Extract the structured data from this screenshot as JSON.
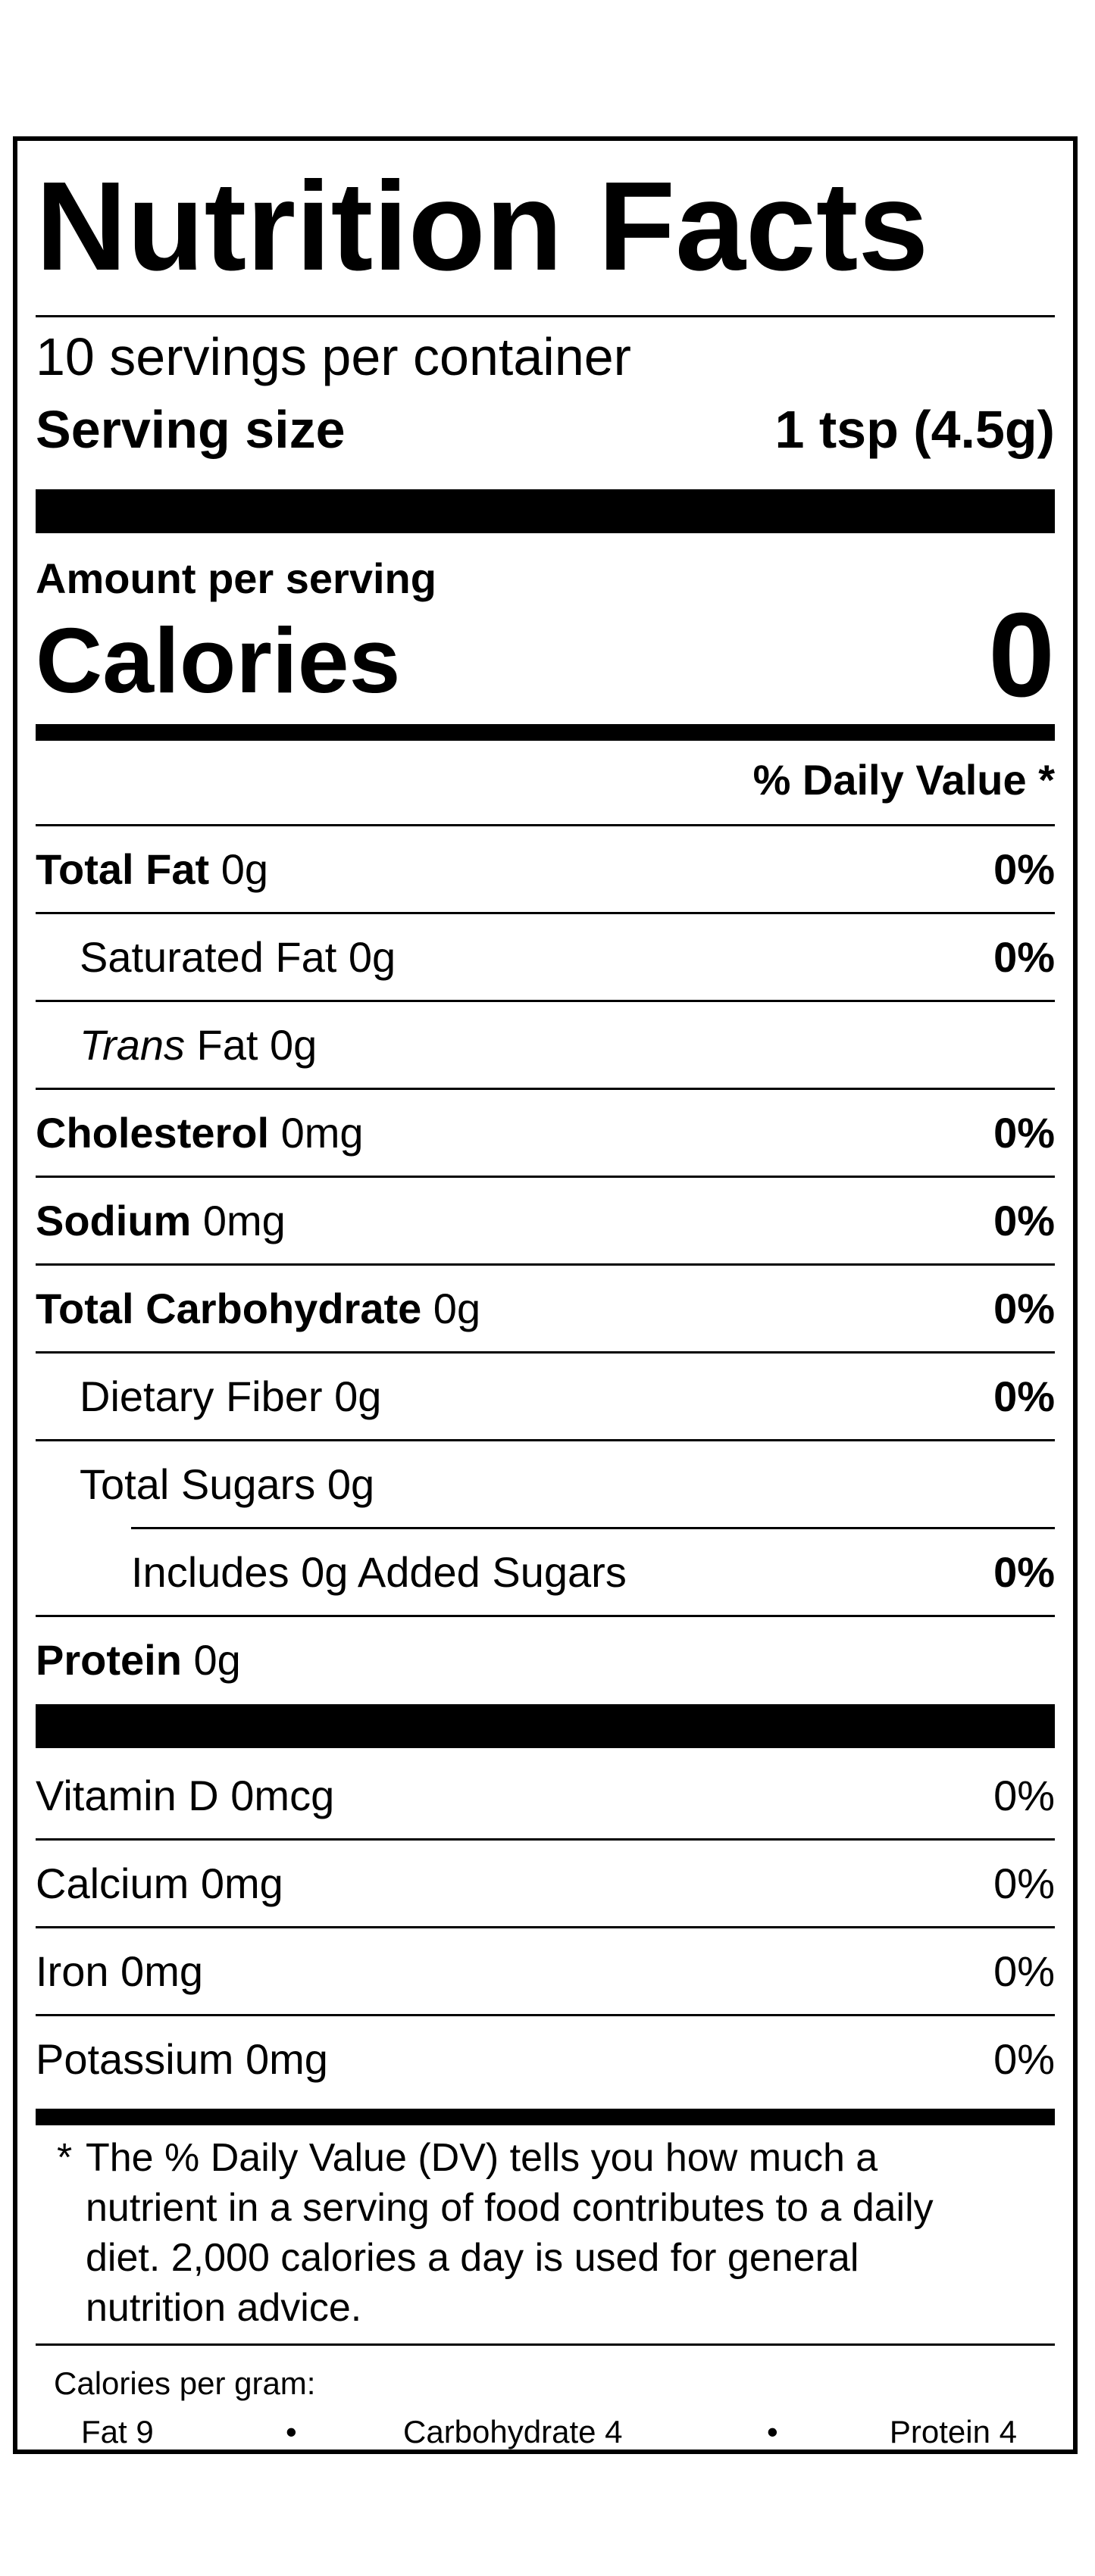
{
  "title": "Nutrition Facts",
  "servings_per_container": "10 servings per container",
  "serving_size": {
    "label": "Serving size",
    "value": "1 tsp (4.5g)"
  },
  "amount_per_serving": "Amount per serving",
  "calories": {
    "label": "Calories",
    "value": "0"
  },
  "daily_value_header": "% Daily Value *",
  "nutrients": [
    {
      "bold": "Total Fat",
      "amount": " 0g",
      "dv": "0%"
    },
    {
      "plain": "Saturated Fat 0g",
      "dv": "0%"
    },
    {
      "italic": "Trans",
      "amount": " Fat 0g",
      "dv": ""
    },
    {
      "bold": "Cholesterol",
      "amount": " 0mg",
      "dv": "0%"
    },
    {
      "bold": "Sodium",
      "amount": " 0mg",
      "dv": "0%"
    },
    {
      "bold": "Total Carbohydrate",
      "amount": " 0g",
      "dv": "0%"
    },
    {
      "plain": "Dietary Fiber 0g",
      "dv": "0%"
    },
    {
      "plain": "Total Sugars 0g",
      "dv": ""
    },
    {
      "plain": "Includes 0g Added Sugars",
      "dv": "0%"
    },
    {
      "bold": "Protein",
      "amount": " 0g",
      "dv": ""
    }
  ],
  "vitamins": [
    {
      "label": "Vitamin D 0mcg",
      "dv": "0%"
    },
    {
      "label": "Calcium 0mg",
      "dv": "0%"
    },
    {
      "label": "Iron 0mg",
      "dv": "0%"
    },
    {
      "label": "Potassium 0mg",
      "dv": "0%"
    }
  ],
  "footnote": {
    "marker": "*",
    "text": "The % Daily Value (DV) tells you how much a nutrient in a serving of food contributes to a daily diet. 2,000 calories a day is used for general nutrition advice."
  },
  "calories_per_gram": {
    "title": "Calories per gram:",
    "fat": "Fat 9",
    "carbohydrate": "Carbohydrate 4",
    "protein": "Protein 4",
    "separator": "•"
  }
}
